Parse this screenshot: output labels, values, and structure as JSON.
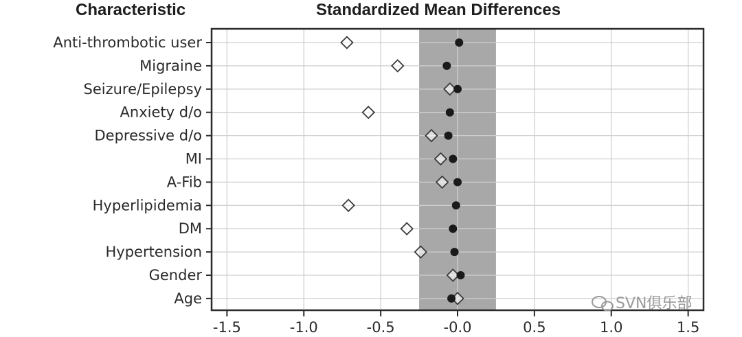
{
  "headers": {
    "left": "Characteristic",
    "right": "Standardized Mean Differences"
  },
  "watermark": {
    "icon": "wechat-icon",
    "text": "SVN俱乐部"
  },
  "chart_data": {
    "type": "scatter",
    "orientation": "horizontal",
    "categories": [
      "Anti-thrombotic user",
      "Migraine",
      "Seizure/Epilepsy",
      "Anxiety d/o",
      "Depressive d/o",
      "MI",
      "A-Fib",
      "Hyperlipidemia",
      "DM",
      "Hypertension",
      "Gender",
      "Age"
    ],
    "series": [
      {
        "marker": "open-diamond",
        "values": [
          -0.72,
          -0.39,
          -0.05,
          -0.58,
          -0.17,
          -0.11,
          -0.1,
          -0.71,
          -0.33,
          -0.24,
          -0.03,
          0.0
        ]
      },
      {
        "marker": "filled-circle",
        "values": [
          0.01,
          -0.07,
          0.0,
          -0.05,
          -0.06,
          -0.03,
          0.0,
          -0.01,
          -0.03,
          -0.02,
          0.02,
          -0.04
        ]
      }
    ],
    "xlim": [
      -1.6,
      1.6
    ],
    "xticks": [
      "-1.5",
      "-1.0",
      "-0.5",
      "-0.0",
      "0.5",
      "1.0",
      "1.5"
    ],
    "xtick_values": [
      -1.5,
      -1.0,
      -0.5,
      0.0,
      0.5,
      1.0,
      1.5
    ],
    "shaded_band": [
      -0.25,
      0.25
    ],
    "grid": true,
    "colors": {
      "band": "#a8a8a9",
      "grid": "#cfcfcf",
      "axis": "#2b2b2b",
      "marker": "#1a1a1a"
    }
  }
}
